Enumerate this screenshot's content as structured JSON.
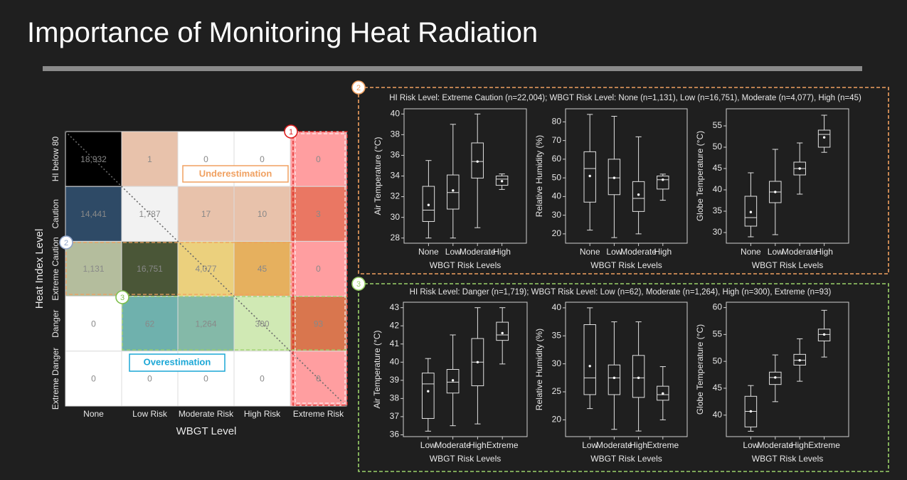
{
  "slide": {
    "title": "Importance of Monitoring Heat Radiation"
  },
  "colors": {
    "panel2_border": "#f0a060",
    "panel3_border": "#9bd26a",
    "extreme_col_border": "#dd1f1f",
    "under_label": "#f0a060",
    "over_label": "#1ba7d6"
  },
  "callouts": {
    "c1": "1",
    "c2": "2",
    "c3": "3"
  },
  "labels": {
    "underestimation": "Underestimation",
    "overestimation": "Overestimation"
  },
  "chart_data": [
    {
      "type": "heatmap",
      "xlabel": "WBGT Level",
      "ylabel": "Heat Index Level",
      "x_categories": [
        "None",
        "Low Risk",
        "Moderate Risk",
        "High Risk",
        "Extreme Risk"
      ],
      "y_categories": [
        "HI below 80",
        "Caution",
        "Extreme Caution",
        "Danger",
        "Extreme Danger"
      ],
      "values": [
        [
          18932,
          1,
          0,
          0,
          0
        ],
        [
          14441,
          1787,
          17,
          10,
          3
        ],
        [
          1131,
          16751,
          4077,
          45,
          0
        ],
        [
          0,
          62,
          1264,
          300,
          93
        ],
        [
          0,
          0,
          0,
          0,
          0
        ]
      ],
      "value_labels": [
        [
          "18,932",
          "1",
          "0",
          "0",
          "0"
        ],
        [
          "14,441",
          "1,787",
          "17",
          "10",
          "3"
        ],
        [
          "1,131",
          "16,751",
          "4,077",
          "45",
          "0"
        ],
        [
          "0",
          "62",
          "1,264",
          "300",
          "93"
        ],
        [
          "0",
          "0",
          "0",
          "0",
          "0"
        ]
      ],
      "cell_colors": [
        [
          "#000000",
          "#e8c2ab",
          "#ffffff",
          "#ffffff",
          "#ff9ea0"
        ],
        [
          "#2e4a66",
          "#f2f2f2",
          "#e8c2ab",
          "#e8c2ab",
          "#ea7763"
        ],
        [
          "#b4bd9d",
          "#4a5637",
          "#ebd07d",
          "#e6b05e",
          "#ff9ea0"
        ],
        [
          "#ffffff",
          "#6fb1ad",
          "#84b9a8",
          "#d0e9b4",
          "#d9764e"
        ],
        [
          "#ffffff",
          "#ffffff",
          "#ffffff",
          "#ffffff",
          "#ff9ea0"
        ]
      ]
    },
    {
      "type": "box",
      "title": "HI Risk Level: Extreme Caution (n=22,004); WBGT Risk Level: None (n=1,131), Low (n=16,751), Moderate (n=4,077), High (n=45)",
      "subplots": [
        {
          "ylabel": "Air Temperature (°C)",
          "xlabel": "WBGT Risk Levels",
          "ylim": [
            27.5,
            40.5
          ],
          "yticks": [
            28,
            30,
            32,
            34,
            36,
            38,
            40
          ],
          "categories": [
            "None",
            "Low",
            "Moderate",
            "High"
          ],
          "boxes": [
            {
              "whislo": 28.0,
              "q1": 29.6,
              "med": 30.7,
              "q3": 33.0,
              "whishi": 35.5,
              "mean": 31.2
            },
            {
              "whislo": 28.0,
              "q1": 30.8,
              "med": 32.4,
              "q3": 34.1,
              "whishi": 39.0,
              "mean": 32.6
            },
            {
              "whislo": 29.0,
              "q1": 33.8,
              "med": 35.4,
              "q3": 37.2,
              "whishi": 40.0,
              "mean": 35.4
            },
            {
              "whislo": 32.7,
              "q1": 33.1,
              "med": 33.7,
              "q3": 34.0,
              "whishi": 34.2,
              "mean": 33.5
            }
          ]
        },
        {
          "ylabel": "Relative Humidity (%)",
          "xlabel": "WBGT Risk Levels",
          "ylim": [
            15,
            87
          ],
          "yticks": [
            20,
            30,
            40,
            50,
            60,
            70,
            80
          ],
          "categories": [
            "None",
            "Low",
            "Moderate",
            "High"
          ],
          "boxes": [
            {
              "whislo": 22,
              "q1": 37,
              "med": 55,
              "q3": 64,
              "whishi": 84,
              "mean": 51
            },
            {
              "whislo": 18,
              "q1": 41,
              "med": 50,
              "q3": 60,
              "whishi": 83,
              "mean": 50
            },
            {
              "whislo": 20,
              "q1": 32,
              "med": 39,
              "q3": 48,
              "whishi": 72,
              "mean": 41
            },
            {
              "whislo": 38,
              "q1": 44,
              "med": 49,
              "q3": 51,
              "whishi": 52,
              "mean": 49
            }
          ]
        },
        {
          "ylabel": "Globe Temperature (°C)",
          "xlabel": "WBGT Risk Levels",
          "ylim": [
            27.5,
            59
          ],
          "yticks": [
            30,
            35,
            40,
            45,
            50,
            55
          ],
          "categories": [
            "None",
            "Low",
            "Moderate",
            "High"
          ],
          "boxes": [
            {
              "whislo": 29,
              "q1": 31.5,
              "med": 33.5,
              "q3": 38.5,
              "whishi": 44,
              "mean": 34.8
            },
            {
              "whislo": 29.5,
              "q1": 37,
              "med": 39.5,
              "q3": 42,
              "whishi": 49.5,
              "mean": 39.5
            },
            {
              "whislo": 39,
              "q1": 43.5,
              "med": 45,
              "q3": 46.5,
              "whishi": 51,
              "mean": 45
            },
            {
              "whislo": 48.8,
              "q1": 50,
              "med": 53,
              "q3": 54,
              "whishi": 57.5,
              "mean": 52.3
            }
          ]
        }
      ]
    },
    {
      "type": "box",
      "title": "HI Risk Level: Danger (n=1,719); WBGT Risk Level: Low (n=62), Moderate (n=1,264), High (n=300), Extreme (n=93)",
      "subplots": [
        {
          "ylabel": "Air Temperature (°C)",
          "xlabel": "WBGT Risk Levels",
          "ylim": [
            35.9,
            43.3
          ],
          "yticks": [
            36,
            37,
            38,
            39,
            40,
            41,
            42,
            43
          ],
          "categories": [
            "Low",
            "Moderate",
            "High",
            "Extreme"
          ],
          "boxes": [
            {
              "whislo": 36.2,
              "q1": 36.9,
              "med": 38.8,
              "q3": 39.4,
              "whishi": 40.2,
              "mean": 38.4
            },
            {
              "whislo": 36.5,
              "q1": 38.3,
              "med": 38.9,
              "q3": 39.6,
              "whishi": 41.5,
              "mean": 39.0
            },
            {
              "whislo": 36.6,
              "q1": 38.7,
              "med": 40.0,
              "q3": 41.3,
              "whishi": 43.0,
              "mean": 40.0
            },
            {
              "whislo": 39.9,
              "q1": 41.2,
              "med": 41.5,
              "q3": 42.2,
              "whishi": 43.0,
              "mean": 41.6
            }
          ]
        },
        {
          "ylabel": "Relative Humidity (%)",
          "xlabel": "WBGT Risk Levels",
          "ylim": [
            17,
            41
          ],
          "yticks": [
            20,
            25,
            30,
            35,
            40
          ],
          "categories": [
            "Low",
            "Moderate",
            "High",
            "Extreme"
          ],
          "boxes": [
            {
              "whislo": 22,
              "q1": 24.5,
              "med": 27.5,
              "q3": 37,
              "whishi": 40,
              "mean": 29.6
            },
            {
              "whislo": 18.3,
              "q1": 24.5,
              "med": 27.5,
              "q3": 29.8,
              "whishi": 37.5,
              "mean": 27.5
            },
            {
              "whislo": 18,
              "q1": 24,
              "med": 27.5,
              "q3": 31.5,
              "whishi": 37.5,
              "mean": 27.5
            },
            {
              "whislo": 20,
              "q1": 23.5,
              "med": 24.5,
              "q3": 26,
              "whishi": 29.5,
              "mean": 24.7
            }
          ]
        },
        {
          "ylabel": "Globe Temperature (°C)",
          "xlabel": "WBGT Risk Levels",
          "ylim": [
            36,
            61
          ],
          "yticks": [
            40,
            45,
            50,
            55,
            60
          ],
          "categories": [
            "Low",
            "Moderate",
            "High",
            "Extreme"
          ],
          "boxes": [
            {
              "whislo": 37,
              "q1": 37.8,
              "med": 40.7,
              "q3": 43.5,
              "whishi": 45.5,
              "mean": 40.7
            },
            {
              "whislo": 42.5,
              "q1": 45.7,
              "med": 47,
              "q3": 48,
              "whishi": 51.2,
              "mean": 47
            },
            {
              "whislo": 46.3,
              "q1": 49.3,
              "med": 50.2,
              "q3": 51.3,
              "whishi": 54.2,
              "mean": 50.2
            },
            {
              "whislo": 50.8,
              "q1": 53.8,
              "med": 55,
              "q3": 56,
              "whishi": 59.5,
              "mean": 55
            }
          ]
        }
      ]
    }
  ]
}
